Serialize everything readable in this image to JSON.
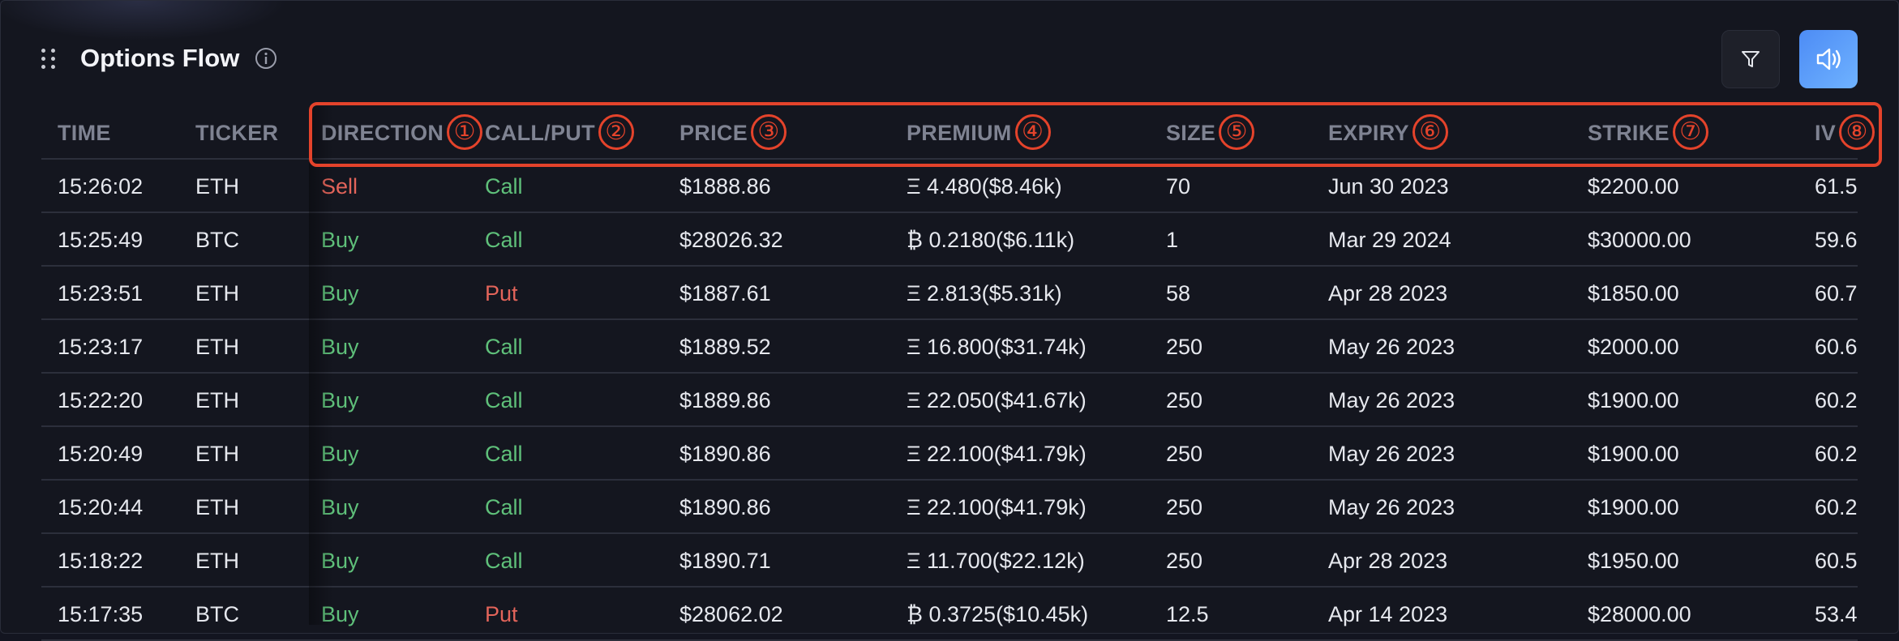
{
  "header": {
    "title": "Options Flow"
  },
  "columns": [
    {
      "label": "TIME",
      "annot": ""
    },
    {
      "label": "TICKER",
      "annot": ""
    },
    {
      "label": "DIRECTION",
      "annot": "①"
    },
    {
      "label": "CALL/PUT",
      "annot": "②"
    },
    {
      "label": "PRICE",
      "annot": "③"
    },
    {
      "label": "PREMIUM",
      "annot": "④"
    },
    {
      "label": "SIZE",
      "annot": "⑤"
    },
    {
      "label": "EXPIRY",
      "annot": "⑥"
    },
    {
      "label": "STRIKE",
      "annot": "⑦"
    },
    {
      "label": "IV",
      "annot": "⑧"
    }
  ],
  "rows": [
    {
      "time": "15:26:02",
      "ticker": "ETH",
      "direction": "Sell",
      "callput": "Call",
      "price": "$1888.86",
      "premium": "Ξ 4.480($8.46k)",
      "size": "70",
      "expiry": "Jun 30 2023",
      "strike": "$2200.00",
      "iv": "61.5"
    },
    {
      "time": "15:25:49",
      "ticker": "BTC",
      "direction": "Buy",
      "callput": "Call",
      "price": "$28026.32",
      "premium": "₿ 0.2180($6.11k)",
      "size": "1",
      "expiry": "Mar 29 2024",
      "strike": "$30000.00",
      "iv": "59.6"
    },
    {
      "time": "15:23:51",
      "ticker": "ETH",
      "direction": "Buy",
      "callput": "Put",
      "price": "$1887.61",
      "premium": "Ξ 2.813($5.31k)",
      "size": "58",
      "expiry": "Apr 28 2023",
      "strike": "$1850.00",
      "iv": "60.7"
    },
    {
      "time": "15:23:17",
      "ticker": "ETH",
      "direction": "Buy",
      "callput": "Call",
      "price": "$1889.52",
      "premium": "Ξ 16.800($31.74k)",
      "size": "250",
      "expiry": "May 26 2023",
      "strike": "$2000.00",
      "iv": "60.6"
    },
    {
      "time": "15:22:20",
      "ticker": "ETH",
      "direction": "Buy",
      "callput": "Call",
      "price": "$1889.86",
      "premium": "Ξ 22.050($41.67k)",
      "size": "250",
      "expiry": "May 26 2023",
      "strike": "$1900.00",
      "iv": "60.2"
    },
    {
      "time": "15:20:49",
      "ticker": "ETH",
      "direction": "Buy",
      "callput": "Call",
      "price": "$1890.86",
      "premium": "Ξ 22.100($41.79k)",
      "size": "250",
      "expiry": "May 26 2023",
      "strike": "$1900.00",
      "iv": "60.2"
    },
    {
      "time": "15:20:44",
      "ticker": "ETH",
      "direction": "Buy",
      "callput": "Call",
      "price": "$1890.86",
      "premium": "Ξ 22.100($41.79k)",
      "size": "250",
      "expiry": "May 26 2023",
      "strike": "$1900.00",
      "iv": "60.2"
    },
    {
      "time": "15:18:22",
      "ticker": "ETH",
      "direction": "Buy",
      "callput": "Call",
      "price": "$1890.71",
      "premium": "Ξ 11.700($22.12k)",
      "size": "250",
      "expiry": "Apr 28 2023",
      "strike": "$1950.00",
      "iv": "60.5"
    },
    {
      "time": "15:17:35",
      "ticker": "BTC",
      "direction": "Buy",
      "callput": "Put",
      "price": "$28062.02",
      "premium": "₿ 0.3725($10.45k)",
      "size": "12.5",
      "expiry": "Apr 14 2023",
      "strike": "$28000.00",
      "iv": "53.4"
    }
  ],
  "colors": {
    "buy_call": "#5fc07a",
    "sell_put": "#e3645a",
    "annotation": "#e4432b",
    "sound_button": "#5a9ef8"
  },
  "icons": {
    "drag": "drag-handle-icon",
    "info": "info-icon",
    "filter": "filter-icon",
    "sound": "speaker-icon"
  }
}
